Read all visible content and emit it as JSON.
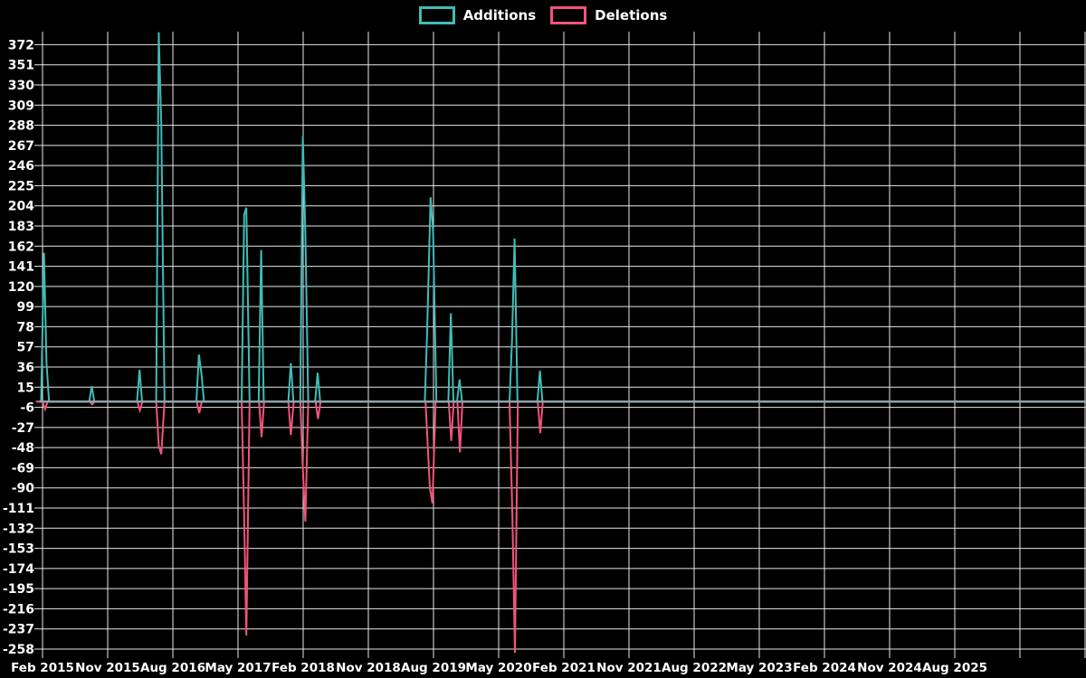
{
  "legend": {
    "items": [
      {
        "label": "Additions",
        "color": "#3fbcb6"
      },
      {
        "label": "Deletions",
        "color": "#f2547c"
      }
    ]
  },
  "chart_data": {
    "type": "line",
    "title": "",
    "description": "Weekly code additions (teal, positive spikes) and deletions (pink, negative spikes) over time on a black background; flat at zero between commit bursts",
    "background": "#000000",
    "grid_color": "#e8e8e8",
    "zero_line_color": "#8ca4ac",
    "text_color": "#ffffff",
    "grid_on": true,
    "legend_position": "top-center",
    "x_axis": {
      "labels": [
        "Feb 2015",
        "Nov 2015",
        "Aug 2016",
        "May 2017",
        "Feb 2018",
        "Nov 2018",
        "Aug 2019",
        "May 2020",
        "Feb 2021",
        "Nov 2021",
        "Aug 2022",
        "May 2023",
        "Feb 2024",
        "Nov 2024",
        "Aug 2025"
      ],
      "months_per_gridline": 9,
      "total_gridlines": 17,
      "unit": "months since Feb 2015"
    },
    "y_axis": {
      "ticks": [
        372,
        351,
        330,
        309,
        288,
        267,
        246,
        225,
        204,
        183,
        162,
        141,
        120,
        99,
        78,
        57,
        36,
        15,
        -6,
        -27,
        -48,
        -69,
        -90,
        -111,
        -132,
        -153,
        -174,
        -195,
        -216,
        -237,
        -258
      ],
      "tick_step": 21,
      "min": -263,
      "max": 386
    },
    "spikes_summary": [
      {
        "date": "Feb 2015",
        "additions": 155,
        "deletions": -8
      },
      {
        "date": "Sep 2015",
        "additions": 16,
        "deletions": -3
      },
      {
        "date": "Mar 2016",
        "additions": 33,
        "deletions": -9
      },
      {
        "date": "Jun 2016",
        "additions": 385,
        "deletions": -55,
        "clipped": true
      },
      {
        "date": "Nov 2016",
        "additions": 49,
        "deletions": -12
      },
      {
        "date": "Jun 2017",
        "additions": 202,
        "deletions": -244
      },
      {
        "date": "Aug 2017",
        "additions": 158,
        "deletions": -37
      },
      {
        "date": "Dec 2017",
        "additions": 40,
        "deletions": -35
      },
      {
        "date": "Feb 2018",
        "additions": 277,
        "deletions": -125
      },
      {
        "date": "Apr 2018",
        "additions": 30,
        "deletions": -18
      },
      {
        "date": "Jul 2019",
        "additions": 213,
        "deletions": -106
      },
      {
        "date": "Oct 2019",
        "additions": 92,
        "deletions": -41
      },
      {
        "date": "Nov 2019",
        "additions": 23,
        "deletions": -53
      },
      {
        "date": "Jul 2020",
        "additions": 170,
        "deletions": -262
      },
      {
        "date": "Oct 2020",
        "additions": 32,
        "deletions": -33
      }
    ],
    "series": [
      {
        "name": "Additions",
        "color": "#3fbcb6",
        "points": [
          [
            -0.9,
            0
          ],
          [
            -0.2,
            0
          ],
          [
            0.2,
            155
          ],
          [
            0.55,
            40
          ],
          [
            0.9,
            0
          ],
          [
            6.45,
            0
          ],
          [
            6.8,
            16
          ],
          [
            7.15,
            0
          ],
          [
            13.05,
            0
          ],
          [
            13.4,
            33
          ],
          [
            13.75,
            0
          ],
          [
            15.7,
            0
          ],
          [
            16.05,
            385
          ],
          [
            16.4,
            289
          ],
          [
            16.85,
            0
          ],
          [
            21.25,
            0
          ],
          [
            21.6,
            49
          ],
          [
            21.95,
            29
          ],
          [
            22.3,
            0
          ],
          [
            27.5,
            0
          ],
          [
            27.85,
            195
          ],
          [
            28.15,
            202
          ],
          [
            28.6,
            0
          ],
          [
            29.85,
            0
          ],
          [
            30.2,
            158
          ],
          [
            30.55,
            0
          ],
          [
            33.95,
            0
          ],
          [
            34.3,
            40
          ],
          [
            34.65,
            0
          ],
          [
            35.6,
            0
          ],
          [
            35.95,
            277
          ],
          [
            36.3,
            176
          ],
          [
            36.7,
            0
          ],
          [
            37.65,
            0
          ],
          [
            38.0,
            30
          ],
          [
            38.35,
            0
          ],
          [
            52.8,
            0
          ],
          [
            53.1,
            67
          ],
          [
            53.6,
            213
          ],
          [
            53.95,
            176
          ],
          [
            54.4,
            0
          ],
          [
            56.05,
            0
          ],
          [
            56.4,
            92
          ],
          [
            56.75,
            0
          ],
          [
            57.25,
            0
          ],
          [
            57.6,
            23
          ],
          [
            57.95,
            0
          ],
          [
            64.5,
            0
          ],
          [
            64.85,
            65
          ],
          [
            65.2,
            170
          ],
          [
            65.6,
            0
          ],
          [
            68.35,
            0
          ],
          [
            68.7,
            32
          ],
          [
            69.05,
            0
          ],
          [
            144.2,
            0
          ]
        ]
      },
      {
        "name": "Deletions",
        "color": "#f2547c",
        "points": [
          [
            -0.9,
            0
          ],
          [
            0.0,
            0
          ],
          [
            0.35,
            -8
          ],
          [
            0.7,
            0
          ],
          [
            6.5,
            0
          ],
          [
            6.85,
            -3
          ],
          [
            7.2,
            0
          ],
          [
            13.1,
            0
          ],
          [
            13.45,
            -9
          ],
          [
            13.8,
            0
          ],
          [
            15.7,
            0
          ],
          [
            16.05,
            -46
          ],
          [
            16.4,
            -55
          ],
          [
            16.85,
            0
          ],
          [
            21.3,
            0
          ],
          [
            21.65,
            -12
          ],
          [
            22.0,
            0
          ],
          [
            27.5,
            0
          ],
          [
            27.85,
            -121
          ],
          [
            28.15,
            -244
          ],
          [
            28.6,
            0
          ],
          [
            29.9,
            0
          ],
          [
            30.25,
            -37
          ],
          [
            30.6,
            0
          ],
          [
            33.95,
            0
          ],
          [
            34.3,
            -35
          ],
          [
            34.7,
            0
          ],
          [
            35.6,
            0
          ],
          [
            35.95,
            -69
          ],
          [
            36.3,
            -125
          ],
          [
            36.7,
            0
          ],
          [
            37.7,
            0
          ],
          [
            38.05,
            -18
          ],
          [
            38.4,
            0
          ],
          [
            52.9,
            0
          ],
          [
            53.5,
            -90
          ],
          [
            53.85,
            -106
          ],
          [
            54.3,
            0
          ],
          [
            56.1,
            0
          ],
          [
            56.45,
            -41
          ],
          [
            56.8,
            0
          ],
          [
            57.3,
            0
          ],
          [
            57.65,
            -53
          ],
          [
            58.0,
            0
          ],
          [
            64.5,
            0
          ],
          [
            64.9,
            -120
          ],
          [
            65.25,
            -262
          ],
          [
            65.65,
            0
          ],
          [
            68.4,
            0
          ],
          [
            68.75,
            -33
          ],
          [
            69.1,
            0
          ],
          [
            144.2,
            0
          ]
        ]
      }
    ]
  }
}
